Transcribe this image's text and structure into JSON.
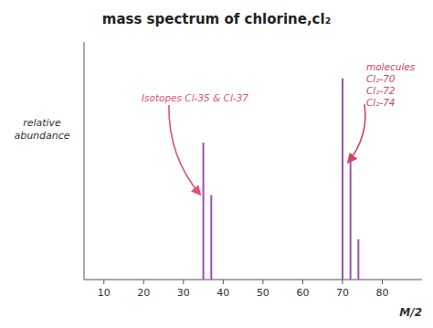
{
  "chart_data": {
    "type": "bar",
    "title": "mass spectrum of chlorine,cl₂",
    "x_label": "M/2",
    "y_label": "relative\nabundance",
    "x": [
      35,
      37,
      70,
      72,
      74
    ],
    "values": [
      0.68,
      0.42,
      1.0,
      0.62,
      0.2
    ],
    "color": "#9b50b0",
    "xlim": [
      5,
      90
    ],
    "ylim": [
      0,
      1.18
    ],
    "xticks": [
      10,
      20,
      30,
      40,
      50,
      60,
      70,
      80
    ],
    "tick_labels": "x",
    "grid": false,
    "annotations": [
      {
        "text": "Isotopes Cl-35 & Cl-37",
        "x": 35,
        "y": 0.42,
        "color": "#e0507a"
      },
      {
        "text": "molecules\nCl₂-70\nCl₂-72\nCl₂-74",
        "x": 72,
        "y": 0.58,
        "color": "#cc4565"
      }
    ]
  }
}
